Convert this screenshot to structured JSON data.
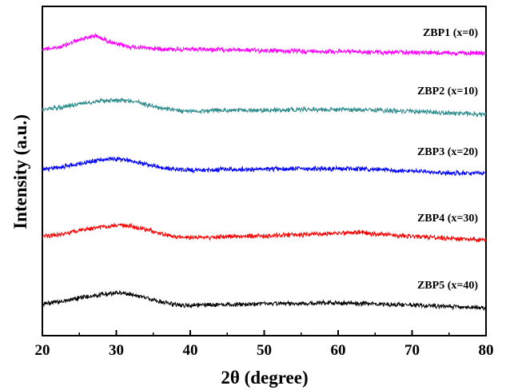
{
  "chart_data": {
    "type": "line",
    "title": "",
    "xlabel": "2θ (degree)",
    "ylabel": "Intensity (a.u.)",
    "xlim": [
      20,
      80
    ],
    "x_ticks": [
      20,
      30,
      40,
      50,
      60,
      70,
      80
    ],
    "x_tick_labels": [
      "20",
      "30",
      "40",
      "50",
      "60",
      "70",
      "80"
    ],
    "y_ticks_shown": false,
    "grid": false,
    "legend": "none",
    "series": [
      {
        "name": "ZBP1 (x=0)",
        "color": "#ff00ff",
        "x": [
          20,
          22,
          24,
          26,
          27,
          28,
          30,
          32,
          34,
          36,
          40,
          45,
          50,
          55,
          60,
          65,
          70,
          75,
          80
        ],
        "y": [
          0.0,
          0.01,
          0.07,
          0.13,
          0.15,
          0.12,
          0.05,
          0.02,
          0.01,
          0.0,
          -0.01,
          -0.01,
          -0.02,
          -0.03,
          -0.03,
          -0.04,
          -0.04,
          -0.05,
          -0.05
        ]
      },
      {
        "name": "ZBP2 (x=10)",
        "color": "#2e8b8b",
        "x": [
          20,
          22,
          24,
          26,
          28,
          30,
          32,
          34,
          36,
          38,
          40,
          45,
          50,
          55,
          60,
          65,
          70,
          75,
          80
        ],
        "y": [
          0.0,
          0.02,
          0.05,
          0.08,
          0.1,
          0.11,
          0.1,
          0.06,
          0.02,
          -0.01,
          -0.02,
          -0.01,
          -0.01,
          0.0,
          0.0,
          -0.01,
          -0.02,
          -0.04,
          -0.06
        ]
      },
      {
        "name": "ZBP3 (x=20)",
        "color": "#0000ff",
        "x": [
          20,
          22,
          24,
          26,
          28,
          30,
          32,
          34,
          36,
          38,
          40,
          45,
          50,
          55,
          60,
          65,
          70,
          75,
          80
        ],
        "y": [
          0.0,
          0.02,
          0.05,
          0.08,
          0.11,
          0.12,
          0.1,
          0.06,
          0.02,
          0.0,
          -0.01,
          0.0,
          0.0,
          0.01,
          0.01,
          0.0,
          -0.02,
          -0.04,
          -0.05
        ]
      },
      {
        "name": "ZBP4 (x=30)",
        "color": "#ff0000",
        "x": [
          20,
          22,
          24,
          26,
          28,
          30,
          32,
          34,
          36,
          38,
          40,
          45,
          50,
          55,
          60,
          63,
          65,
          70,
          75,
          80
        ],
        "y": [
          0.0,
          0.02,
          0.05,
          0.08,
          0.11,
          0.13,
          0.12,
          0.08,
          0.03,
          0.0,
          -0.01,
          0.0,
          0.01,
          0.02,
          0.04,
          0.05,
          0.03,
          0.0,
          -0.02,
          -0.04
        ]
      },
      {
        "name": "ZBP5 (x=40)",
        "color": "#000000",
        "x": [
          20,
          22,
          24,
          26,
          28,
          30,
          32,
          34,
          36,
          38,
          40,
          45,
          50,
          55,
          60,
          65,
          70,
          75,
          80
        ],
        "y": [
          0.0,
          0.02,
          0.05,
          0.08,
          0.1,
          0.12,
          0.11,
          0.07,
          0.02,
          -0.01,
          -0.02,
          -0.01,
          0.0,
          0.0,
          0.01,
          0.0,
          -0.02,
          -0.03,
          -0.05
        ]
      }
    ]
  }
}
